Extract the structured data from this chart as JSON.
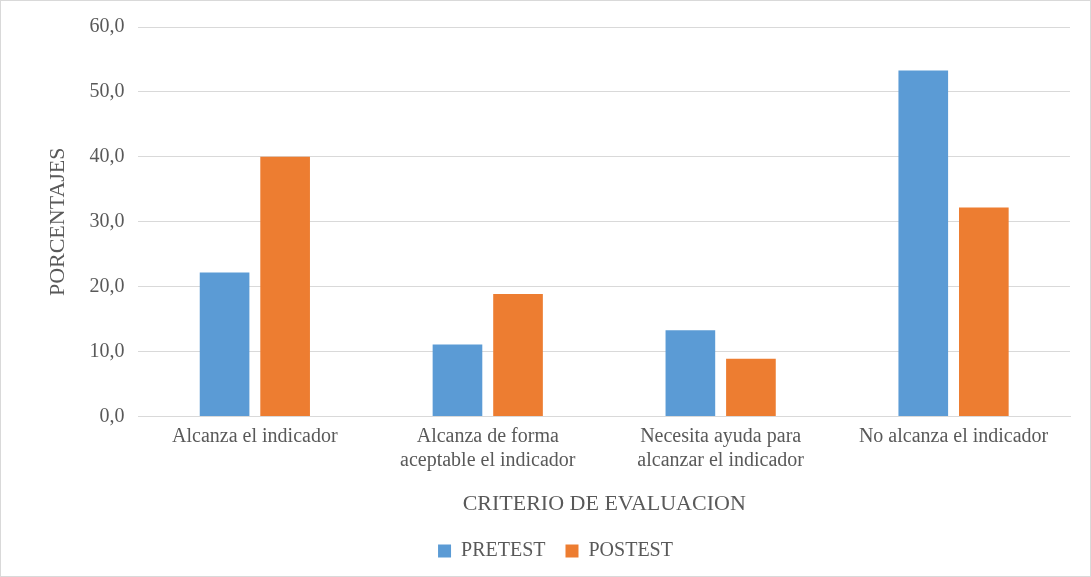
{
  "chart_data": {
    "type": "bar",
    "xlabel": "CRITERIO DE EVALUACION",
    "ylabel": "PORCENTAJES",
    "categories": [
      "Alcanza el indicador",
      "Alcanza de forma aceptable el indicador",
      "Necesita ayuda para alcanzar el indicador",
      "No alcanza el indicador"
    ],
    "series": [
      {
        "name": "PRETEST",
        "color": "#5b9bd5",
        "values": [
          22.2,
          11.1,
          13.3,
          53.3
        ]
      },
      {
        "name": "POSTEST",
        "color": "#ed7d31",
        "values": [
          40.0,
          18.9,
          8.9,
          32.2
        ]
      }
    ],
    "ylim": [
      0,
      60
    ],
    "yticks": [
      {
        "value": 0,
        "label": "0,0"
      },
      {
        "value": 10,
        "label": "10,0"
      },
      {
        "value": 20,
        "label": "20,0"
      },
      {
        "value": 30,
        "label": "30,0"
      },
      {
        "value": 40,
        "label": "40,0"
      },
      {
        "value": 50,
        "label": "50,0"
      },
      {
        "value": 60,
        "label": "60,0"
      }
    ],
    "grid": "y",
    "legend": "bottom"
  }
}
